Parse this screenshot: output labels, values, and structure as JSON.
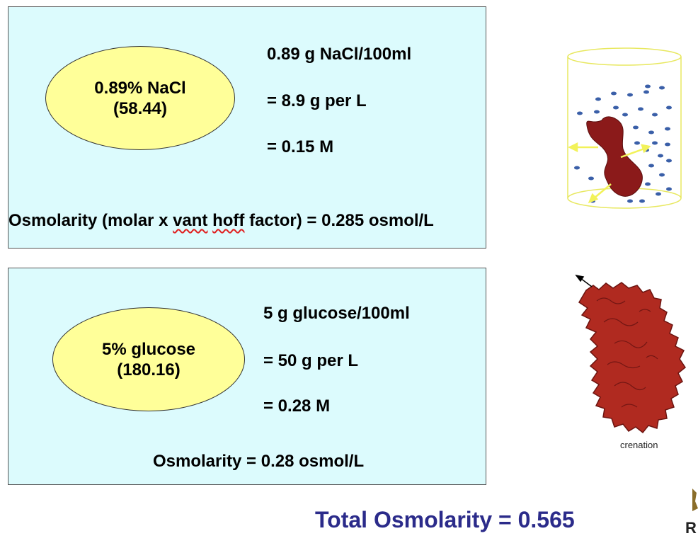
{
  "nacl_panel": {
    "ellipse_line1": "0.89% NaCl",
    "ellipse_line2": "(58.44)",
    "calc_line1": "0.89 g NaCl/100ml",
    "calc_line2": "=  8.9 g per L",
    "calc_line3": "=  0.15 M",
    "osm_prefix": "Osmolarity (molar x ",
    "osm_vant": "vant",
    "osm_space": " ",
    "osm_hoff": "hoff",
    "osm_suffix": " factor) = 0.285 osmol/L"
  },
  "glucose_panel": {
    "ellipse_line1": "5% glucose",
    "ellipse_line2": "(180.16)",
    "calc_line1": "5 g glucose/100ml",
    "calc_line2": "=  50 g per L",
    "calc_line3": "=  0.28 M",
    "osmolarity": "Osmolarity = 0.28 osmol/L"
  },
  "images": {
    "crenation_label": "crenation"
  },
  "total": "Total Osmolarity = 0.565",
  "corner_glyph": "R",
  "colors": {
    "panel_bg": "#dcfbfd",
    "ellipse_fill": "#ffff99",
    "total_text": "#2b2b8a",
    "cell_red": "#8b1a1a",
    "arrow_yellow": "#f2f25a",
    "particle_blue": "#3a5fa8"
  }
}
